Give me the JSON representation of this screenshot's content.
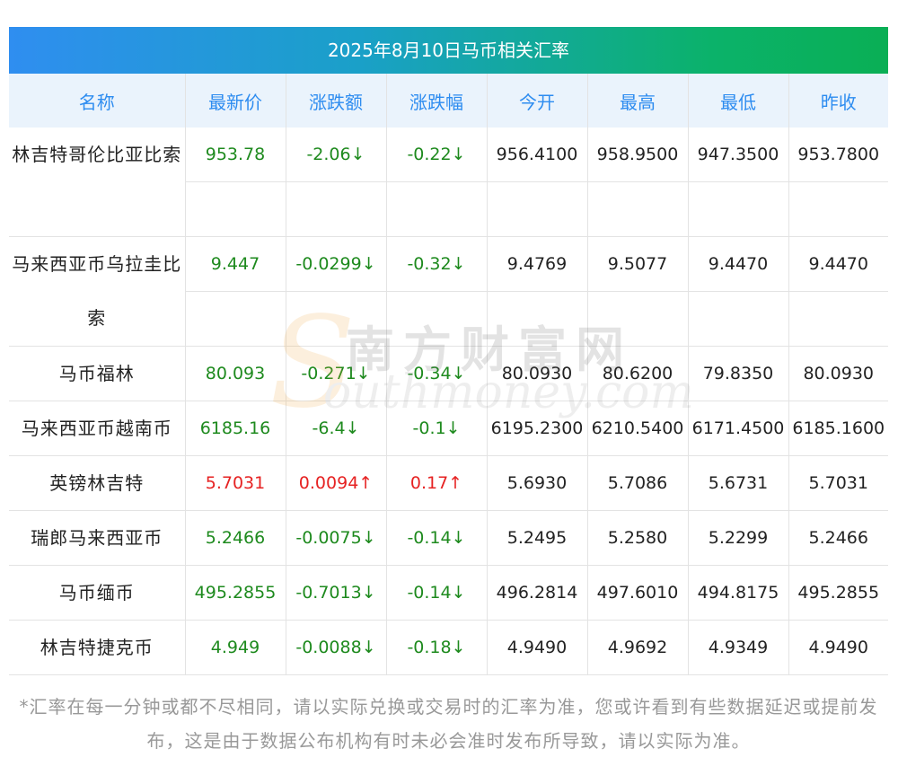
{
  "title": "2025年8月10日马币相关汇率",
  "headers": [
    "名称",
    "最新价",
    "涨跌额",
    "涨跌幅",
    "今开",
    "最高",
    "最低",
    "昨收"
  ],
  "rows": [
    {
      "name": "林吉特哥伦比亚比索",
      "latest": "953.78",
      "change": "-2.06↓",
      "pct": "-0.22↓",
      "open": "956.4100",
      "high": "958.9500",
      "low": "947.3500",
      "prev": "953.7800",
      "dir": "down"
    },
    {
      "name": "马来西亚币乌拉圭比索",
      "latest": "9.447",
      "change": "-0.0299↓",
      "pct": "-0.32↓",
      "open": "9.4769",
      "high": "9.5077",
      "low": "9.4470",
      "prev": "9.4470",
      "dir": "down"
    },
    {
      "name": "马币福林",
      "latest": "80.093",
      "change": "-0.271↓",
      "pct": "-0.34↓",
      "open": "80.0930",
      "high": "80.6200",
      "low": "79.8350",
      "prev": "80.0930",
      "dir": "down"
    },
    {
      "name": "马来西亚币越南币",
      "latest": "6185.16",
      "change": "-6.4↓",
      "pct": "-0.1↓",
      "open": "6195.2300",
      "high": "6210.5400",
      "low": "6171.4500",
      "prev": "6185.1600",
      "dir": "down"
    },
    {
      "name": "英镑林吉特",
      "latest": "5.7031",
      "change": "0.0094↑",
      "pct": "0.17↑",
      "open": "5.6930",
      "high": "5.7086",
      "low": "5.6731",
      "prev": "5.7031",
      "dir": "up"
    },
    {
      "name": "瑞郎马来西亚币",
      "latest": "5.2466",
      "change": "-0.0075↓",
      "pct": "-0.14↓",
      "open": "5.2495",
      "high": "5.2580",
      "low": "5.2299",
      "prev": "5.2466",
      "dir": "down"
    },
    {
      "name": "马币缅币",
      "latest": "495.2855",
      "change": "-0.7013↓",
      "pct": "-0.14↓",
      "open": "496.2814",
      "high": "497.6010",
      "low": "494.8175",
      "prev": "495.2855",
      "dir": "down"
    },
    {
      "name": "林吉特捷克币",
      "latest": "4.949",
      "change": "-0.0088↓",
      "pct": "-0.18↓",
      "open": "4.9490",
      "high": "4.9692",
      "low": "4.9349",
      "prev": "4.9490",
      "dir": "down"
    }
  ],
  "watermark": {
    "cn": "南方财富网",
    "en": "outhmoney.com",
    "s": "S"
  },
  "note": "*汇率在每一分钟或都不尽相同，请以实际兑换或交易时的汇率为准，您或许看到有些数据延迟或提前发布，这是由于数据公布机构有时未必会准时发布所导致，请以实际为准。",
  "colors": {
    "up": "#e62222",
    "down": "#1e8a1e",
    "header_text": "#2d8cf0",
    "header_bg": "#eaf3fc",
    "title_gradient_start": "#2f8ef0",
    "title_gradient_end": "#0aaf55"
  }
}
